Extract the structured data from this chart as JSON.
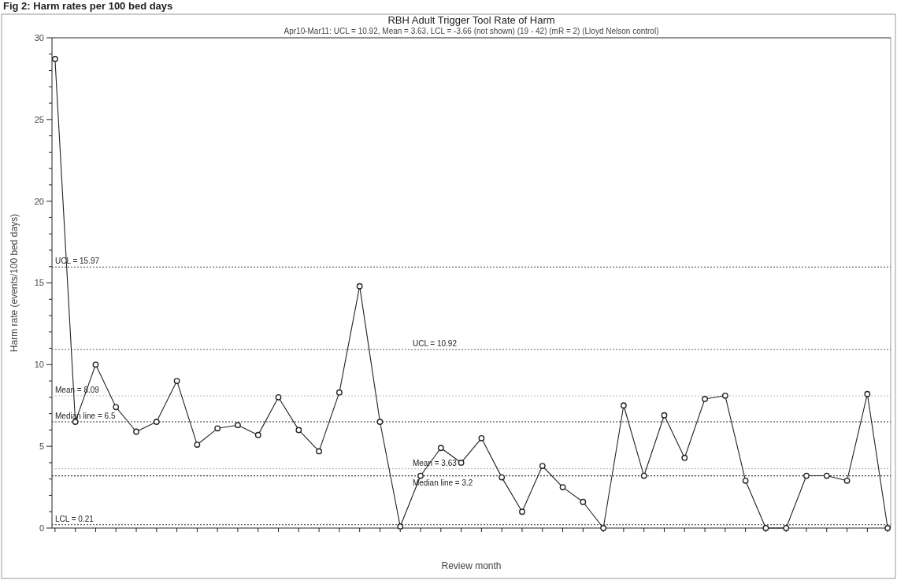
{
  "chart_data": {
    "type": "line",
    "title": "RBH Adult Trigger Tool Rate of Harm",
    "subtitle": "Apr10-Mar11: UCL = 10.92, Mean = 3.63, LCL = -3.66 (not shown) (19 - 42) (mR = 2) (Lloyd Nelson control)",
    "xlabel": "Review month",
    "ylabel": "Harm rate (events/100 bed days)",
    "annotations": [
      "Fig 2: Harm rates per 100 bed days"
    ],
    "categories": [
      null,
      null,
      null,
      null,
      null,
      null,
      null,
      null,
      null,
      null,
      null,
      null,
      null,
      null,
      null,
      null,
      null,
      null,
      null,
      null,
      null,
      null,
      null,
      null,
      null,
      null,
      null,
      null,
      null,
      null,
      null,
      null,
      null,
      null,
      null,
      null,
      null,
      null,
      null,
      null,
      null,
      null
    ],
    "series": [
      {
        "color": "#222222",
        "values": [
          28.7,
          6.5,
          10.0,
          7.4,
          5.9,
          6.5,
          9.0,
          5.1,
          6.1,
          6.3,
          5.7,
          8.0,
          6.0,
          4.7,
          8.3,
          14.8,
          6.5,
          0.1,
          3.2,
          4.9,
          4.0,
          5.5,
          3.1,
          1.0,
          3.8,
          2.5,
          1.6,
          0,
          7.5,
          3.2,
          6.9,
          4.3,
          7.9,
          8.1,
          2.9,
          0,
          0,
          3.2,
          3.2,
          2.9,
          8.2,
          0
        ]
      }
    ],
    "ylim": [
      0,
      30
    ],
    "yticks": [
      0,
      {
        "value": 1,
        "label": null
      },
      {
        "value": 2,
        "label": null
      },
      {
        "value": 3,
        "label": null
      },
      {
        "value": 4,
        "label": null
      },
      5,
      {
        "value": 6,
        "label": null
      },
      {
        "value": 7,
        "label": null
      },
      {
        "value": 8,
        "label": null
      },
      {
        "value": 9,
        "label": null
      },
      10,
      {
        "value": 11,
        "label": null
      },
      {
        "value": 12,
        "label": null
      },
      {
        "value": 13,
        "label": null
      },
      {
        "value": 14,
        "label": null
      },
      15,
      {
        "value": 16,
        "label": null
      },
      {
        "value": 17,
        "label": null
      },
      {
        "value": 18,
        "label": null
      },
      {
        "value": 19,
        "label": null
      },
      20,
      {
        "value": 21,
        "label": null
      },
      {
        "value": 22,
        "label": null
      },
      {
        "value": 23,
        "label": null
      },
      {
        "value": 24,
        "label": null
      },
      25,
      {
        "value": 26,
        "label": null
      },
      {
        "value": 27,
        "label": null
      },
      {
        "value": 28,
        "label": null
      },
      {
        "value": 29,
        "label": null
      },
      30
    ],
    "ref_lines": [
      {
        "axis": "y",
        "value": 15.97,
        "label": "UCL = 15.97",
        "color": "#666666",
        "line_style": "dotted"
      },
      {
        "axis": "y",
        "value": 8.09,
        "label": "Mean = 8.09",
        "color": "#bbbbbb",
        "line_style": "dotted"
      },
      {
        "axis": "y",
        "value": 6.5,
        "label": "Median line = 6.5",
        "color": "#333333",
        "line_style": "dotted"
      },
      {
        "axis": "y",
        "value": 0.21,
        "label": "LCL = 0.21",
        "color": "#666666",
        "line_style": "dotted"
      },
      {
        "axis": "y",
        "value": 10.92,
        "label": "UCL = 10.92",
        "color": "#666666",
        "line_style": "dotted"
      },
      {
        "axis": "y",
        "value": 3.63,
        "label": "Mean = 3.63",
        "color": "#bbbbbb",
        "line_style": "dotted"
      },
      {
        "axis": "y",
        "value": 3.2,
        "label": "Median line = 3.2",
        "color": "#333333",
        "line_style": "dotted"
      }
    ],
    "grid": false,
    "marker": "circle",
    "line_style": "solid"
  }
}
